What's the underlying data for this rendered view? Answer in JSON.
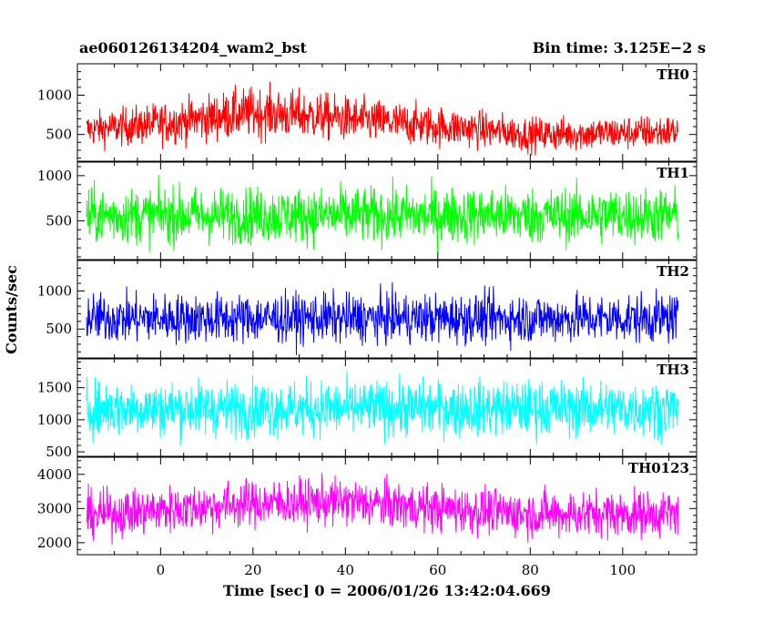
{
  "chart_data": {
    "type": "line",
    "title_left": "ae060126134204_wam2_bst",
    "title_right": "Bin time: 3.125E−2 s",
    "xlabel": "Time [sec] 0 = 2006/01/26 13:42:04.669",
    "ylabel": "Counts/sec",
    "xlim": [
      -18,
      116
    ],
    "x_range": [
      -16,
      112
    ],
    "x_ticks": [
      0,
      20,
      40,
      60,
      80,
      100
    ],
    "panels": [
      {
        "name": "TH0",
        "color": "#ff0000",
        "ylim": [
          160,
          1400
        ],
        "y_ticks": [
          500,
          1000
        ],
        "baseline": [
          [
            -16,
            560
          ],
          [
            0,
            640
          ],
          [
            20,
            780
          ],
          [
            30,
            750
          ],
          [
            50,
            650
          ],
          [
            70,
            560
          ],
          [
            80,
            500
          ],
          [
            100,
            520
          ],
          [
            112,
            540
          ]
        ],
        "spread": [
          [
            -16,
            300
          ],
          [
            20,
            450
          ],
          [
            50,
            380
          ],
          [
            80,
            300
          ],
          [
            112,
            300
          ]
        ]
      },
      {
        "name": "TH1",
        "color": "#00ff00",
        "ylim": [
          70,
          1150
        ],
        "y_ticks": [
          500,
          1000
        ],
        "baseline": [
          [
            -16,
            560
          ],
          [
            112,
            560
          ]
        ],
        "spread": [
          [
            -16,
            430
          ],
          [
            112,
            430
          ]
        ]
      },
      {
        "name": "TH2",
        "color": "#0000ff",
        "ylim": [
          120,
          1400
        ],
        "y_ticks": [
          500,
          1000
        ],
        "baseline": [
          [
            -16,
            640
          ],
          [
            112,
            640
          ]
        ],
        "spread": [
          [
            -16,
            450
          ],
          [
            112,
            450
          ]
        ]
      },
      {
        "name": "TH3",
        "color": "#00ffff",
        "ylim": [
          430,
          1950
        ],
        "y_ticks": [
          500,
          1000,
          1500
        ],
        "baseline": [
          [
            -16,
            1180
          ],
          [
            112,
            1180
          ]
        ],
        "spread": [
          [
            -16,
            600
          ],
          [
            112,
            600
          ]
        ]
      },
      {
        "name": "TH0123",
        "color": "#ff00ff",
        "ylim": [
          1650,
          4500
        ],
        "y_ticks": [
          2000,
          3000,
          4000
        ],
        "baseline": [
          [
            -16,
            2800
          ],
          [
            20,
            3150
          ],
          [
            40,
            3200
          ],
          [
            60,
            3000
          ],
          [
            80,
            2850
          ],
          [
            112,
            2850
          ]
        ],
        "spread": [
          [
            -16,
            950
          ],
          [
            112,
            950
          ]
        ]
      }
    ]
  }
}
